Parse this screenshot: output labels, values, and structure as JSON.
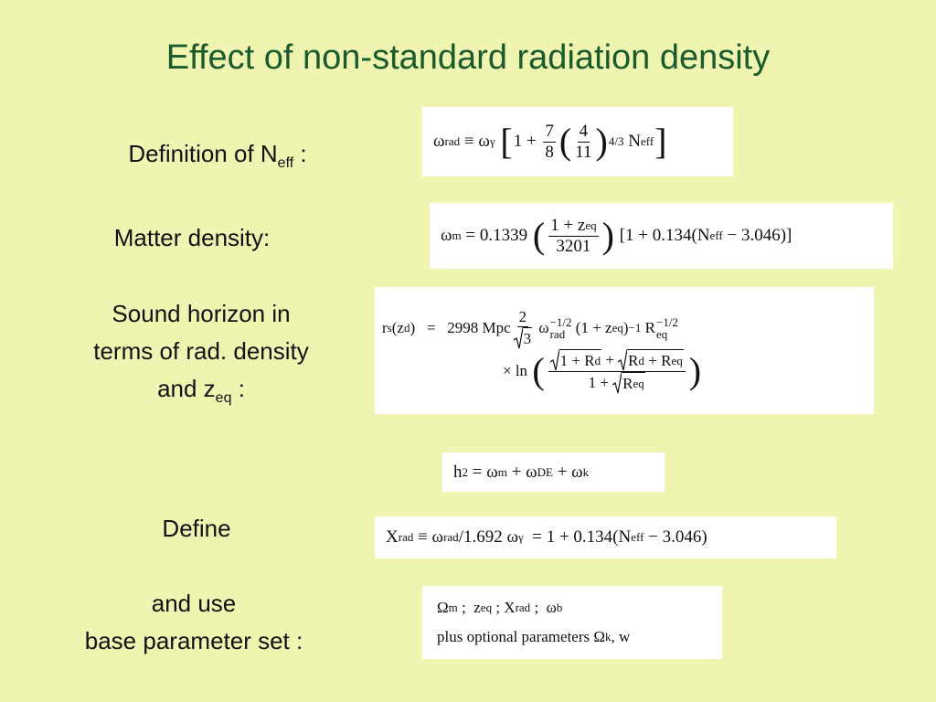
{
  "title": "Effect of non-standard radiation density",
  "labels": [
    [
      [
        "Definition of N",
        {
          "sub": "eff"
        },
        " :"
      ]
    ],
    [
      [
        "Matter density:"
      ]
    ],
    [
      [
        "Sound horizon in"
      ],
      [
        "terms of rad. density"
      ],
      [
        "and z",
        {
          "sub": "eq"
        },
        " :"
      ]
    ],
    [
      [
        "Define"
      ]
    ],
    [
      [
        "and use"
      ],
      [
        "base parameter set :"
      ]
    ]
  ],
  "formulas": [
    [
      [
        "ω",
        {
          "sub": "rad"
        },
        " ≡ ω",
        {
          "sub": "γ"
        },
        " ",
        {
          "big": "["
        },
        "1 + ",
        {
          "num": "7",
          "den": "8"
        },
        {
          "big": "("
        },
        {
          "num": "4",
          "den": "11"
        },
        {
          "big": ")"
        },
        {
          "sup": "4/3"
        },
        " N",
        {
          "sub": "eff"
        },
        {
          "big": "]"
        }
      ]
    ],
    [
      [
        "ω",
        {
          "sub": "m"
        },
        " = 0.1339 ",
        {
          "big": "("
        },
        {
          "num": [
            "1 + z",
            {
              "sub": "eq"
            }
          ],
          "den": "3201"
        },
        {
          "big": ")"
        },
        " [1 + 0.134(N",
        {
          "sub": "eff"
        },
        " − 3.046)]"
      ]
    ],
    [
      [
        "r",
        {
          "sub": "s"
        },
        "(z",
        {
          "sub": "d"
        },
        ")",
        "   =   ",
        "2998 Mpc",
        {
          "num": "2",
          "den": {
            "sqrt": "3"
          }
        },
        " ω",
        {
          "sub": "rad",
          "sup": "−1/2"
        },
        " (1 + z",
        {
          "sub": "eq"
        },
        ")",
        {
          "sup": "−1"
        },
        " R",
        {
          "sub": "eq",
          "sup": "−1/2"
        }
      ],
      [
        "× ln ",
        {
          "big": "("
        },
        {
          "num": [
            {
              "sqrt": [
                "1 + R",
                {
                  "sub": "d"
                }
              ]
            },
            " + ",
            {
              "sqrt": [
                "R",
                {
                  "sub": "d"
                },
                " + R",
                {
                  "sub": "eq"
                }
              ]
            }
          ],
          "den": [
            "1 + ",
            {
              "sqrt": [
                "R",
                {
                  "sub": "eq"
                }
              ]
            }
          ]
        },
        {
          "big": ")"
        }
      ]
    ],
    [
      [
        "h",
        {
          "sup": "2"
        },
        " = ω",
        {
          "sub": "m"
        },
        " + ω",
        {
          "sub": "DE"
        },
        " + ω",
        {
          "sub": "k"
        }
      ]
    ],
    [
      [
        "X",
        {
          "sub": "rad"
        },
        " ≡ ω",
        {
          "sub": "rad"
        },
        "/1.692 ω",
        {
          "sub": "γ"
        },
        "  = 1 + 0.134(N",
        {
          "sub": "eff"
        },
        " − 3.046)"
      ]
    ],
    [
      [
        "Ω",
        {
          "sub": "m"
        },
        " ;  z",
        {
          "sub": "eq"
        },
        " ; X",
        {
          "sub": "rad"
        },
        " ;  ω",
        {
          "sub": "b"
        }
      ],
      [
        "plus optional parameters Ω",
        {
          "sub": "k"
        },
        ", w"
      ]
    ]
  ]
}
